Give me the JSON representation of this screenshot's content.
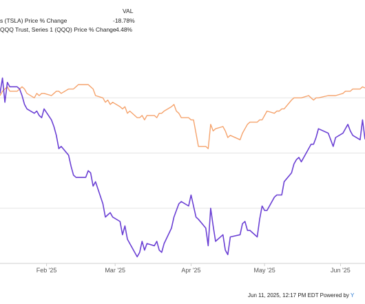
{
  "legend": {
    "header": "VAL",
    "items": [
      {
        "label": "s (TSLA) Price % Change",
        "value": "-18.78%",
        "color": "#6a3fd4"
      },
      {
        "label": "QQQ Trust, Series 1 (QQQ) Price % Change",
        "value": "4.48%",
        "color": "#f5a26b"
      }
    ]
  },
  "footer": {
    "text": "Jun 11, 2025, 12:17 PM EDT Powered by",
    "brand": "Y"
  },
  "chart_data": {
    "type": "line",
    "x_tick_labels": [
      "Feb '25",
      "Mar '25",
      "Apr '25",
      "May '25",
      "Jun '25"
    ],
    "x_range": [
      "2025-01-13",
      "2025-06-11"
    ],
    "y_range": [
      -75,
      25
    ],
    "grid": true,
    "legend_position": "top-left",
    "series": [
      {
        "name": "s (TSLA) Price % Change",
        "color": "#6a3fd4",
        "x": [
          "2025-01-13",
          "2025-01-14",
          "2025-01-15",
          "2025-01-16",
          "2025-01-17",
          "2025-01-20",
          "2025-01-21",
          "2025-01-22",
          "2025-01-23",
          "2025-01-24",
          "2025-01-27",
          "2025-01-28",
          "2025-01-29",
          "2025-01-30",
          "2025-01-31",
          "2025-02-03",
          "2025-02-04",
          "2025-02-05",
          "2025-02-06",
          "2025-02-07",
          "2025-02-10",
          "2025-02-11",
          "2025-02-12",
          "2025-02-13",
          "2025-02-14",
          "2025-02-17",
          "2025-02-18",
          "2025-02-19",
          "2025-02-20",
          "2025-02-21",
          "2025-02-24",
          "2025-02-25",
          "2025-02-26",
          "2025-02-27",
          "2025-02-28",
          "2025-03-03",
          "2025-03-04",
          "2025-03-05",
          "2025-03-06",
          "2025-03-07",
          "2025-03-10",
          "2025-03-11",
          "2025-03-12",
          "2025-03-13",
          "2025-03-14",
          "2025-03-17",
          "2025-03-18",
          "2025-03-19",
          "2025-03-20",
          "2025-03-21",
          "2025-03-24",
          "2025-03-25",
          "2025-03-26",
          "2025-03-27",
          "2025-03-28",
          "2025-03-31",
          "2025-04-01",
          "2025-04-02",
          "2025-04-03",
          "2025-04-04",
          "2025-04-07",
          "2025-04-08",
          "2025-04-09",
          "2025-04-10",
          "2025-04-11",
          "2025-04-14",
          "2025-04-15",
          "2025-04-16",
          "2025-04-17",
          "2025-04-21",
          "2025-04-22",
          "2025-04-23",
          "2025-04-24",
          "2025-04-25",
          "2025-04-28",
          "2025-04-29",
          "2025-04-30",
          "2025-05-01",
          "2025-05-02",
          "2025-05-05",
          "2025-05-06",
          "2025-05-07",
          "2025-05-08",
          "2025-05-09",
          "2025-05-12",
          "2025-05-13",
          "2025-05-14",
          "2025-05-15",
          "2025-05-16",
          "2025-05-19",
          "2025-05-20",
          "2025-05-21",
          "2025-05-22",
          "2025-05-23",
          "2025-05-27",
          "2025-05-28",
          "2025-05-29",
          "2025-05-30",
          "2025-06-02",
          "2025-06-03",
          "2025-06-04",
          "2025-06-05",
          "2025-06-06",
          "2025-06-09",
          "2025-06-10",
          "2025-06-11"
        ],
        "y": [
          2,
          9,
          -2,
          7,
          5,
          5,
          4,
          1,
          -3,
          -5,
          -7,
          -6,
          -8,
          -9,
          -5,
          -10,
          -13,
          -17,
          -23,
          -22,
          -26,
          -31,
          -35,
          -36,
          -36,
          -36,
          -33,
          -34,
          -40,
          -38,
          -48,
          -54,
          -53,
          -52,
          -54,
          -56,
          -62,
          -58,
          -64,
          -66,
          -72,
          -70,
          -65,
          -69,
          -66,
          -67,
          -65,
          -69,
          -70,
          -66,
          -59,
          -54,
          -51,
          -48,
          -47,
          -49,
          -44,
          -49,
          -54,
          -55,
          -59,
          -67,
          -50,
          -58,
          -65,
          -62,
          -69,
          -71,
          -63,
          -62,
          -57,
          -56,
          -60,
          -60,
          -63,
          -55,
          -49,
          -51,
          -51,
          -45,
          -44,
          -44,
          -44,
          -38,
          -34,
          -30,
          -28,
          -27,
          -29,
          -23,
          -21,
          -21,
          -18,
          -14,
          -16,
          -19,
          -22,
          -18,
          -16,
          -14,
          -12,
          -15,
          -17,
          -19,
          -10,
          -18.78
        ]
      },
      {
        "name": "QQQ Trust, Series 1 (QQQ) Price % Change",
        "color": "#f5a26b",
        "x": [
          "2025-01-13",
          "2025-01-14",
          "2025-01-15",
          "2025-01-16",
          "2025-01-17",
          "2025-01-20",
          "2025-01-21",
          "2025-01-22",
          "2025-01-23",
          "2025-01-24",
          "2025-01-27",
          "2025-01-28",
          "2025-01-29",
          "2025-01-30",
          "2025-01-31",
          "2025-02-03",
          "2025-02-04",
          "2025-02-05",
          "2025-02-06",
          "2025-02-07",
          "2025-02-10",
          "2025-02-11",
          "2025-02-12",
          "2025-02-13",
          "2025-02-14",
          "2025-02-17",
          "2025-02-18",
          "2025-02-19",
          "2025-02-20",
          "2025-02-21",
          "2025-02-24",
          "2025-02-25",
          "2025-02-26",
          "2025-02-27",
          "2025-02-28",
          "2025-03-03",
          "2025-03-04",
          "2025-03-05",
          "2025-03-06",
          "2025-03-07",
          "2025-03-10",
          "2025-03-11",
          "2025-03-12",
          "2025-03-13",
          "2025-03-14",
          "2025-03-17",
          "2025-03-18",
          "2025-03-19",
          "2025-03-20",
          "2025-03-21",
          "2025-03-24",
          "2025-03-25",
          "2025-03-26",
          "2025-03-27",
          "2025-03-28",
          "2025-03-31",
          "2025-04-01",
          "2025-04-02",
          "2025-04-03",
          "2025-04-04",
          "2025-04-07",
          "2025-04-08",
          "2025-04-09",
          "2025-04-10",
          "2025-04-11",
          "2025-04-14",
          "2025-04-15",
          "2025-04-16",
          "2025-04-17",
          "2025-04-21",
          "2025-04-22",
          "2025-04-23",
          "2025-04-24",
          "2025-04-25",
          "2025-04-28",
          "2025-04-29",
          "2025-04-30",
          "2025-05-01",
          "2025-05-02",
          "2025-05-05",
          "2025-05-06",
          "2025-05-07",
          "2025-05-08",
          "2025-05-09",
          "2025-05-12",
          "2025-05-13",
          "2025-05-14",
          "2025-05-15",
          "2025-05-16",
          "2025-05-19",
          "2025-05-20",
          "2025-05-21",
          "2025-05-22",
          "2025-05-23",
          "2025-05-27",
          "2025-05-28",
          "2025-05-29",
          "2025-05-30",
          "2025-06-02",
          "2025-06-03",
          "2025-06-04",
          "2025-06-05",
          "2025-06-06",
          "2025-06-09",
          "2025-06-10",
          "2025-06-11"
        ],
        "y": [
          1,
          3,
          4,
          5,
          3,
          3,
          4,
          5,
          4,
          2,
          0,
          2,
          1,
          2,
          2,
          1,
          2,
          3,
          3,
          2,
          4,
          4,
          4,
          5,
          6,
          6,
          6,
          5,
          4,
          1,
          0,
          -2,
          -1,
          -3,
          -2,
          -4,
          -5,
          -4,
          -7,
          -6,
          -9,
          -9,
          -8,
          -10,
          -8,
          -8,
          -9,
          -7,
          -7,
          -6,
          -4,
          -3,
          -6,
          -7,
          -9,
          -9,
          -10,
          -10,
          -16,
          -22,
          -22,
          -23,
          -12,
          -15,
          -14,
          -13,
          -15,
          -18,
          -17,
          -19,
          -16,
          -14,
          -12,
          -11,
          -11,
          -10,
          -10,
          -8,
          -6,
          -7,
          -6,
          -6,
          -5,
          -5,
          -1,
          0,
          0,
          0,
          0,
          1,
          0,
          -1,
          0,
          0,
          1,
          1,
          1,
          1,
          2,
          3,
          3,
          3,
          4,
          4,
          5,
          4.48
        ]
      }
    ]
  }
}
